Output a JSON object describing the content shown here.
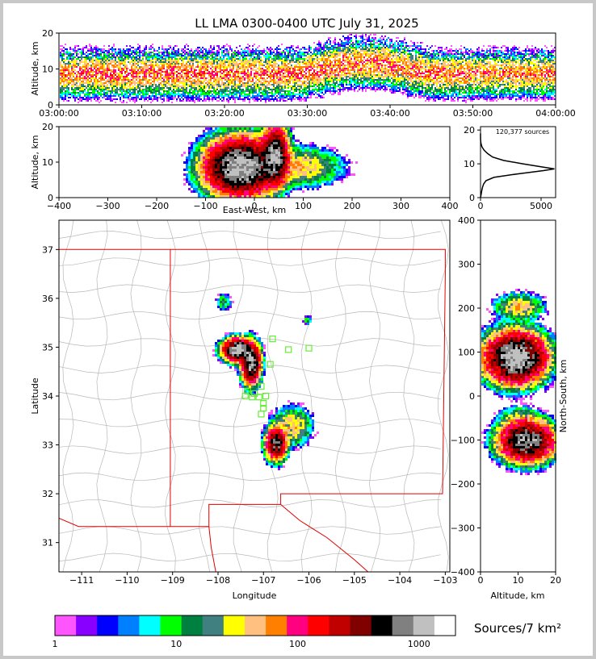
{
  "chart_data": [
    {
      "id": "time-height",
      "type": "heatmap",
      "title": "LL LMA 0300-0400 UTC July 31, 2025",
      "ylabel": "Altitude, km",
      "xlabel": "",
      "x_ticks": [
        "03:00:00",
        "03:10:00",
        "03:20:00",
        "03:30:00",
        "03:40:00",
        "03:50:00",
        "04:00:00"
      ],
      "ylim": [
        0,
        20
      ],
      "y_ticks": [
        0,
        10,
        20
      ],
      "x_range_minutes": [
        0,
        60
      ],
      "altitude_centroid_km": [
        9,
        9,
        9,
        9,
        9,
        9,
        9,
        9,
        9,
        9,
        9,
        9,
        9,
        9,
        9,
        10,
        11,
        12,
        12,
        12,
        11,
        10,
        9,
        9,
        9,
        9,
        9,
        9,
        9,
        9
      ],
      "intensity": [
        0.9,
        1,
        1,
        1,
        1,
        1,
        1,
        1,
        1,
        1,
        1,
        1,
        1,
        1,
        1,
        1,
        1,
        1,
        1,
        1,
        0.9,
        0.9,
        0.9,
        0.9,
        0.9,
        0.8,
        0.8,
        0.8,
        0.8,
        0.8
      ]
    },
    {
      "id": "ew-altitude",
      "type": "heatmap",
      "xlabel": "East-West, km",
      "ylabel": "Altitude, km",
      "xlim": [
        -400,
        400
      ],
      "ylim": [
        0,
        20
      ],
      "x_ticks": [
        -400,
        -300,
        -200,
        -100,
        0,
        100,
        200,
        300,
        400
      ],
      "y_ticks": [
        0,
        10,
        20
      ],
      "clusters": [
        {
          "x": -30,
          "alt": 9,
          "sx": 32,
          "salt": 3.5,
          "peak": 1800
        },
        {
          "x": 40,
          "alt": 12,
          "sx": 12,
          "salt": 3.5,
          "peak": 1500
        },
        {
          "x": 90,
          "alt": 9,
          "sx": 40,
          "salt": 2.5,
          "peak": 60
        }
      ]
    },
    {
      "id": "altitude-histogram",
      "type": "line",
      "annotation": "120,377 sources",
      "xlim": [
        0,
        6200
      ],
      "ylim": [
        0,
        21
      ],
      "x_ticks": [
        0,
        5000
      ],
      "y_ticks": [
        0,
        10,
        20
      ],
      "profile": [
        [
          0,
          0
        ],
        [
          1,
          50
        ],
        [
          2,
          100
        ],
        [
          3,
          160
        ],
        [
          4,
          250
        ],
        [
          5,
          450
        ],
        [
          6,
          1100
        ],
        [
          7,
          3000
        ],
        [
          8,
          5200
        ],
        [
          8.5,
          6100
        ],
        [
          9,
          5200
        ],
        [
          10,
          3500
        ],
        [
          11,
          1900
        ],
        [
          12,
          1000
        ],
        [
          13,
          600
        ],
        [
          14,
          300
        ],
        [
          15,
          120
        ],
        [
          16,
          40
        ],
        [
          17,
          10
        ],
        [
          18,
          2
        ],
        [
          19,
          0
        ]
      ]
    },
    {
      "id": "plan-view",
      "type": "heatmap",
      "xlabel": "Longitude",
      "ylabel": "Latitude",
      "xlim": [
        -111.5,
        -102.9
      ],
      "ylim": [
        30.4,
        37.6
      ],
      "x_ticks": [
        -111,
        -110,
        -109,
        -108,
        -107,
        -106,
        -105,
        -104,
        -103
      ],
      "y_ticks": [
        31,
        32,
        33,
        34,
        35,
        36,
        37
      ],
      "clusters": [
        {
          "lon": -107.9,
          "lat": 35.95,
          "slon": 0.08,
          "slat": 0.08,
          "peak": 20
        },
        {
          "lon": -107.6,
          "lat": 34.97,
          "slon": 0.14,
          "slat": 0.1,
          "peak": 1800
        },
        {
          "lon": -107.3,
          "lat": 34.7,
          "slon": 0.09,
          "slat": 0.18,
          "peak": 1500
        },
        {
          "lon": -106.4,
          "lat": 33.4,
          "slon": 0.2,
          "slat": 0.18,
          "peak": 60
        },
        {
          "lon": -106.75,
          "lat": 33.05,
          "slon": 0.1,
          "slat": 0.15,
          "peak": 900
        },
        {
          "lon": -106.05,
          "lat": 35.58,
          "slon": 0.05,
          "slat": 0.05,
          "peak": 15
        }
      ],
      "stations": [
        [
          -106.8,
          35.17
        ],
        [
          -106.45,
          34.95
        ],
        [
          -106.0,
          34.98
        ],
        [
          -106.85,
          34.65
        ],
        [
          -107.2,
          34.05
        ],
        [
          -107.4,
          34.0
        ],
        [
          -107.25,
          33.98
        ],
        [
          -107.1,
          33.98
        ],
        [
          -106.95,
          34.0
        ],
        [
          -107.05,
          34.2
        ],
        [
          -107.0,
          33.85
        ],
        [
          -107.0,
          33.75
        ],
        [
          -107.05,
          33.63
        ],
        [
          -107.35,
          34.1
        ]
      ]
    },
    {
      "id": "ns-altitude",
      "type": "heatmap",
      "xlabel": "Altitude, km",
      "ylabel": "North-South, km",
      "xlim": [
        0,
        20
      ],
      "ylim": [
        -400,
        400
      ],
      "x_ticks": [
        0,
        10,
        20
      ],
      "y_ticks": [
        -400,
        -300,
        -200,
        -100,
        0,
        100,
        200,
        300,
        400
      ],
      "clusters": [
        {
          "alt": 9,
          "y": 90,
          "salt": 3.5,
          "sy": 25,
          "peak": 1800
        },
        {
          "alt": 10,
          "y": 205,
          "salt": 3,
          "sy": 14,
          "peak": 60
        },
        {
          "alt": 12,
          "y": -100,
          "salt": 3.2,
          "sy": 20,
          "peak": 1300
        },
        {
          "alt": 10,
          "y": -55,
          "salt": 2.5,
          "sy": 15,
          "peak": 50
        }
      ]
    }
  ],
  "colorbar": {
    "label": "Sources/7 km²",
    "tick_labels": [
      "1",
      "10",
      "100",
      "1000"
    ],
    "colors": [
      "#ff55ff",
      "#8800ff",
      "#0000ff",
      "#0080ff",
      "#00ffff",
      "#00ff00",
      "#008040",
      "#408080",
      "#ffff00",
      "#ffc080",
      "#ff8000",
      "#ff0080",
      "#ff0000",
      "#c00000",
      "#800000",
      "#000000",
      "#808080",
      "#c0c0c0",
      "#ffffff"
    ]
  }
}
